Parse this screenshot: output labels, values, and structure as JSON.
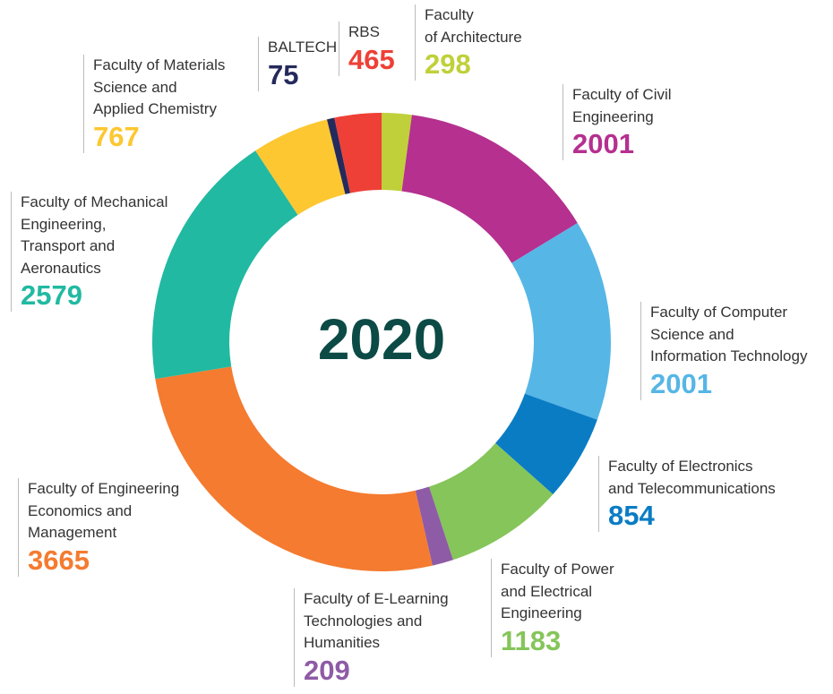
{
  "chart_data": {
    "type": "pie",
    "donut": true,
    "center_label": "2020",
    "categories": [
      "Faculty\nof Architecture",
      "Faculty of Civil\nEngineering",
      "Faculty of Computer\nScience and\nInformation Technology",
      "Faculty of Electronics\nand Telecommunications",
      "Faculty of Power\nand Electrical\nEngineering",
      "Faculty of E-Learning\nTechnologies and\nHumanities",
      "Faculty of Engineering\nEconomics and\nManagement",
      "Faculty of Mechanical\nEngineering,\nTransport and\nAeronautics",
      "Faculty of Materials\nScience and\nApplied Chemistry",
      "BALTECH",
      "RBS"
    ],
    "values": [
      298,
      2001,
      2001,
      854,
      1183,
      209,
      3665,
      2579,
      767,
      75,
      465
    ],
    "colors": [
      "#bfd03a",
      "#b5308f",
      "#56b6e6",
      "#0a7cc4",
      "#85c55a",
      "#8e5ba6",
      "#f47b30",
      "#21b9a1",
      "#fdc731",
      "#252a5c",
      "#ee4036"
    ]
  }
}
